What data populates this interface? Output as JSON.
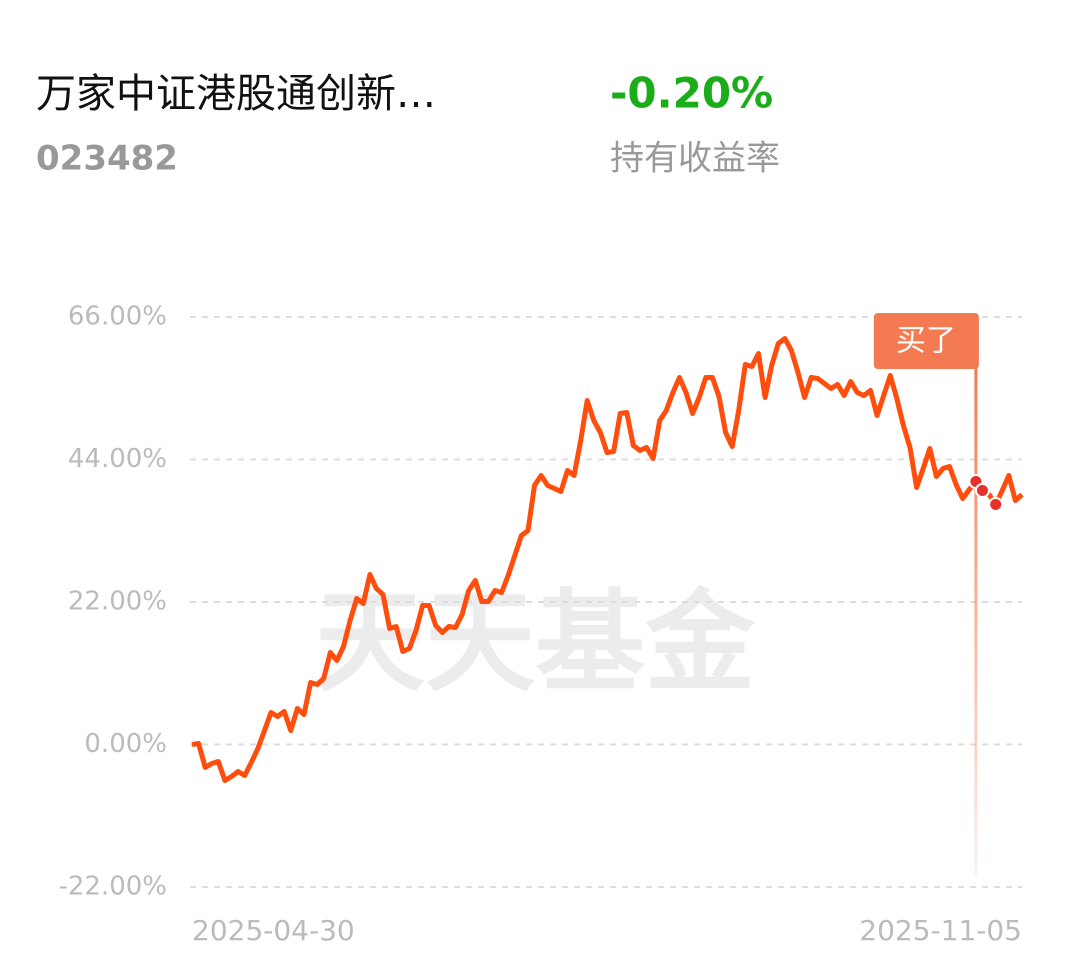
{
  "header": {
    "name": "万家中证港股通创新…",
    "code": "023482",
    "return": "-0.20%",
    "return_label": "持有收益率"
  },
  "chart_data": {
    "type": "line",
    "watermark": "天天基金",
    "categories": [
      "2025-04-30",
      null,
      null,
      null,
      null,
      null,
      null,
      null,
      null,
      null,
      null,
      null,
      null,
      null,
      null,
      null,
      null,
      null,
      null,
      null,
      null,
      null,
      null,
      null,
      null,
      null,
      null,
      null,
      null,
      null,
      null,
      null,
      null,
      null,
      null,
      null,
      null,
      null,
      null,
      null,
      null,
      null,
      null,
      null,
      null,
      null,
      null,
      null,
      null,
      null,
      null,
      null,
      null,
      null,
      null,
      null,
      null,
      null,
      null,
      null,
      null,
      null,
      null,
      null,
      null,
      null,
      null,
      null,
      null,
      null,
      null,
      null,
      null,
      null,
      null,
      null,
      null,
      null,
      null,
      null,
      null,
      null,
      null,
      null,
      null,
      null,
      null,
      null,
      null,
      null,
      null,
      null,
      null,
      null,
      null,
      null,
      null,
      null,
      null,
      null,
      null,
      null,
      null,
      null,
      null,
      null,
      null,
      null,
      null,
      null,
      null,
      null,
      null,
      null,
      null,
      null,
      null,
      null,
      null,
      null,
      null,
      null,
      null,
      null,
      null,
      null,
      "2025-11-05"
    ],
    "series": [
      {
        "color": "#ff4d0d",
        "values": [
          0,
          0.15,
          -3.55,
          -2.93,
          -2.62,
          -5.56,
          -4.94,
          -4.17,
          -4.79,
          -2.78,
          -0.62,
          2.16,
          4.94,
          4.32,
          5.09,
          2.16,
          5.56,
          4.63,
          9.57,
          9.26,
          10.19,
          14.2,
          12.97,
          15.13,
          19.14,
          22.54,
          21.77,
          26.25,
          24.09,
          23.16,
          17.91,
          18.22,
          14.36,
          14.82,
          17.6,
          21.46,
          21.46,
          18.37,
          17.29,
          18.22,
          18.06,
          20.07,
          23.78,
          25.32,
          22.08,
          22.08,
          23.78,
          23.47,
          26.09,
          29.18,
          32.27,
          33.04,
          39.99,
          41.53,
          39.99,
          39.52,
          39.06,
          42.3,
          41.53,
          46.94,
          53.11,
          50.02,
          48.17,
          45.08,
          45.24,
          51.1,
          51.26,
          46.16,
          45.39,
          45.85,
          44.16,
          50.02,
          51.57,
          54.35,
          56.66,
          54.35,
          51.1,
          53.57,
          56.66,
          56.66,
          53.73,
          48.17,
          46.01,
          51.57,
          58.67,
          58.36,
          60.37,
          53.57,
          58.52,
          61.91,
          62.68,
          60.83,
          57.43,
          53.57,
          56.66,
          56.51,
          55.74,
          54.96,
          55.58,
          53.88,
          56.04,
          54.35,
          53.88,
          54.65,
          50.8,
          53.88,
          56.97,
          53.42,
          49.25,
          45.85,
          39.68,
          42.61,
          45.7,
          41.38,
          42.61,
          42.92,
          40.14,
          37.98,
          39.37,
          40.6,
          39.22,
          38.6,
          37.05,
          39.22,
          41.53,
          37.67,
          38.6
        ]
      }
    ],
    "markers": [
      119,
      120,
      122
    ],
    "marker_color": "#e8302a",
    "annotation": {
      "text": "买了",
      "index": 119,
      "color": "#f47a52"
    },
    "ylim": [
      -22,
      66
    ],
    "yticks": [
      {
        "value": 66,
        "label": "66.00%"
      },
      {
        "value": 44,
        "label": "44.00%"
      },
      {
        "value": 22,
        "label": "22.00%"
      },
      {
        "value": 0,
        "label": "0.00%"
      },
      {
        "value": -22,
        "label": "-22.00%"
      }
    ],
    "grid": true
  }
}
